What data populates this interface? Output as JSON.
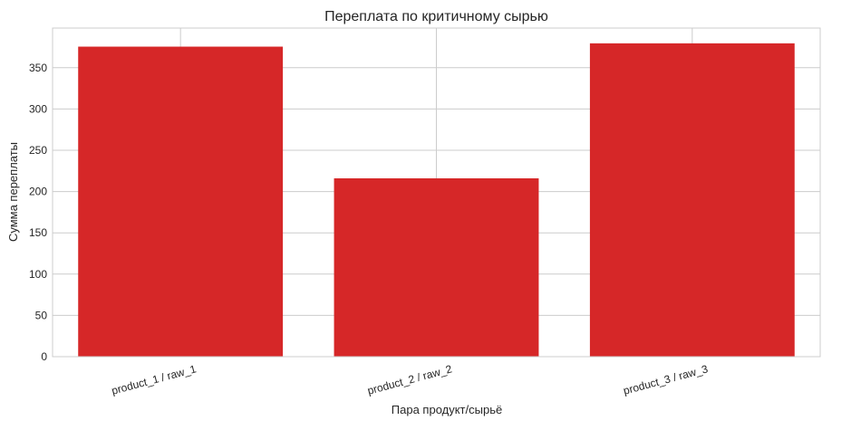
{
  "chart_data": {
    "type": "bar",
    "title": "Переплата по критичному сырью",
    "xlabel": "Пара продукт/сырьё",
    "ylabel": "Сумма переплаты",
    "categories": [
      "product_1 / raw_1",
      "product_2 / raw_2",
      "product_3 / raw_3"
    ],
    "values": [
      375.5,
      216,
      379.5
    ],
    "ylim": [
      0,
      398
    ],
    "yticks": [
      0,
      50,
      100,
      150,
      200,
      250,
      300,
      350
    ],
    "grid": true,
    "bar_color": "#d62728",
    "grid_color": "#cccccc",
    "axes_edge_color": "#cccccc"
  }
}
